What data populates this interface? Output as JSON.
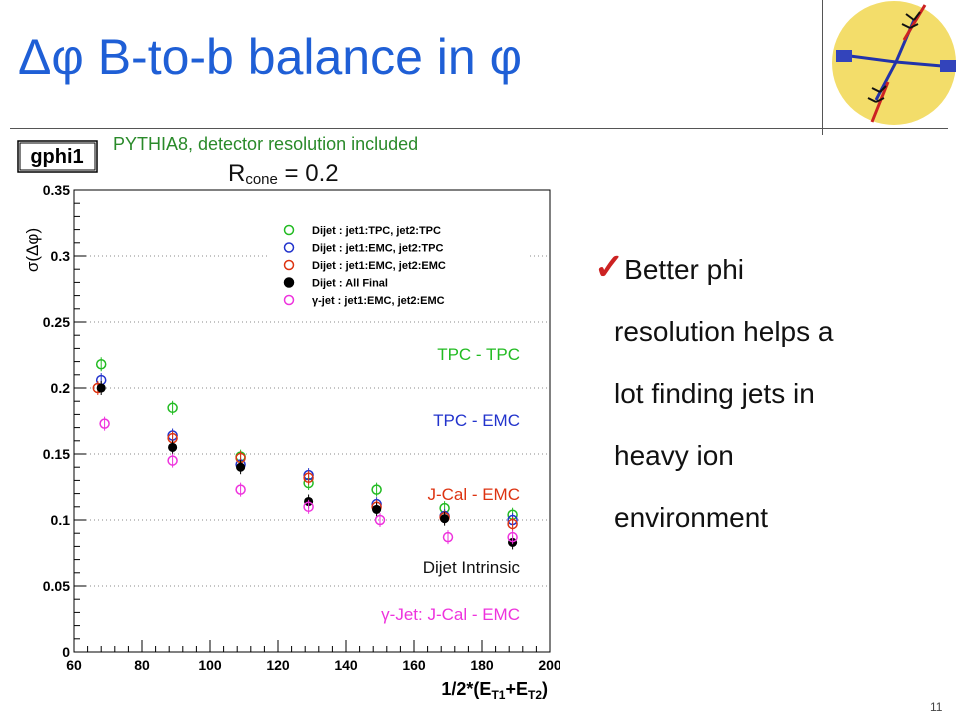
{
  "slide": {
    "title": "Δφ B-to-b balance in φ",
    "subtitle": "PYTHIA8, detector resolution included",
    "rcone_main": "R",
    "rcone_sub": "cone",
    "rcone_value": " = 0.2",
    "bullet_text": "Better phi resolution helps a lot finding jets in heavy ion environment",
    "bullet_lines": [
      "Better phi",
      "resolution helps a",
      "lot finding jets in",
      "heavy ion",
      "environment"
    ],
    "slide_number": "11",
    "check_icon": "check-icon",
    "logo_icon": "dijet-diagram-icon"
  },
  "chart_data": {
    "type": "scatter",
    "hist_name": "gphi1",
    "xlabel": "1/2*(E_T1+E_T2)",
    "xlabel_parts": {
      "pre": "1/2*(E",
      "sub1": "T1",
      "mid": "+E",
      "sub2": "T2",
      "post": ")"
    },
    "ylabel": "σ(Δφ)",
    "xlim": [
      60,
      200
    ],
    "ylim": [
      0,
      0.35
    ],
    "xticks": [
      60,
      80,
      100,
      120,
      140,
      160,
      180,
      200
    ],
    "yticks": [
      0,
      0.05,
      0.1,
      0.15,
      0.2,
      0.25,
      0.3,
      0.35
    ],
    "ytick_labels": [
      "0",
      "0.05",
      "0.1",
      "0.15",
      "0.2",
      "0.25",
      "0.3",
      "0.35"
    ],
    "grid": "horizontal dotted",
    "legend_position": "top-right",
    "series": [
      {
        "name": "Dijet : jet1:TPC, jet2:TPC",
        "color": "#22bb22",
        "marker": "open-circle",
        "x": [
          68,
          89,
          109,
          129,
          149,
          169,
          189
        ],
        "y": [
          0.218,
          0.185,
          0.148,
          0.128,
          0.123,
          0.109,
          0.104
        ]
      },
      {
        "name": "Dijet : jet1:EMC, jet2:TPC",
        "color": "#2233cc",
        "marker": "open-circle",
        "x": [
          68,
          89,
          109,
          129,
          149,
          169,
          189
        ],
        "y": [
          0.206,
          0.164,
          0.142,
          0.134,
          0.112,
          0.103,
          0.1
        ]
      },
      {
        "name": "Dijet : jet1:EMC, jet2:EMC",
        "color": "#dd3311",
        "marker": "open-circle",
        "x": [
          67,
          89,
          109,
          129,
          149,
          169,
          189
        ],
        "y": [
          0.2,
          0.162,
          0.147,
          0.132,
          0.11,
          0.102,
          0.097
        ]
      },
      {
        "name": "Dijet : All Final",
        "color": "#000000",
        "marker": "filled-circle",
        "x": [
          68,
          89,
          109,
          129,
          149,
          169,
          189
        ],
        "y": [
          0.2,
          0.155,
          0.14,
          0.114,
          0.108,
          0.101,
          0.083
        ]
      },
      {
        "name": "γ-jet : jet1:EMC, jet2:EMC",
        "color": "#ee33dd",
        "marker": "open-circle",
        "x": [
          69,
          89,
          109,
          129,
          150,
          170,
          189
        ],
        "y": [
          0.173,
          0.145,
          0.123,
          0.11,
          0.1,
          0.087,
          0.087
        ]
      }
    ],
    "annotations": [
      {
        "text": "TPC - TPC",
        "color": "#22bb22"
      },
      {
        "text": "TPC - EMC",
        "color": "#2233cc"
      },
      {
        "text": "J-Cal - EMC",
        "color": "#dd3311"
      },
      {
        "text": "Dijet Intrinsic",
        "color": "#111111"
      },
      {
        "text": "γ-Jet: J-Cal - EMC",
        "color": "#ee33dd"
      }
    ]
  }
}
